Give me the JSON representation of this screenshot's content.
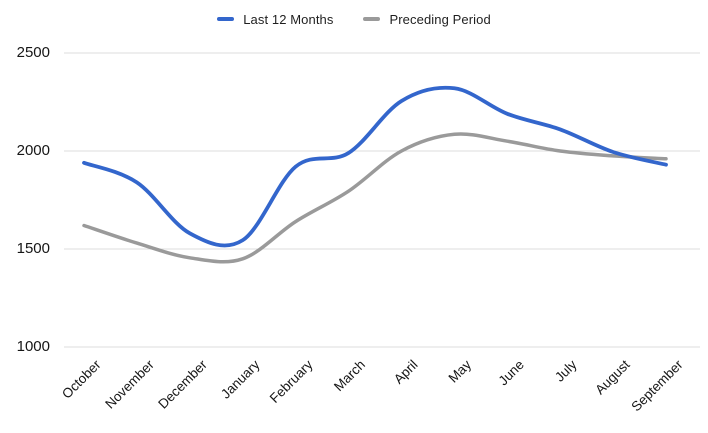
{
  "chart_data": {
    "type": "line",
    "smooth": true,
    "grid": "horizontal",
    "legend_position": "top",
    "categories": [
      "October",
      "November",
      "December",
      "January",
      "February",
      "March",
      "April",
      "May",
      "June",
      "July",
      "August",
      "September"
    ],
    "series": [
      {
        "name": "Last 12 Months",
        "color": "#3366cc",
        "values": [
          1940,
          1840,
          1580,
          1545,
          1920,
          1990,
          2255,
          2320,
          2190,
          2110,
          1995,
          1930
        ]
      },
      {
        "name": "Preceding Period",
        "color": "#9a9a9a",
        "values": [
          1620,
          1530,
          1455,
          1450,
          1640,
          1795,
          2000,
          2085,
          2050,
          2000,
          1975,
          1960
        ]
      }
    ],
    "ylim": [
      1000,
      2500
    ],
    "yticks": [
      2500,
      2000,
      1500,
      1000
    ],
    "xlabel": "",
    "ylabel": "",
    "title": ""
  },
  "colors": {
    "gridline": "#dcdcdc",
    "axis_text": "#161616",
    "legend_text": "#1f1f1f",
    "background": "#ffffff"
  }
}
